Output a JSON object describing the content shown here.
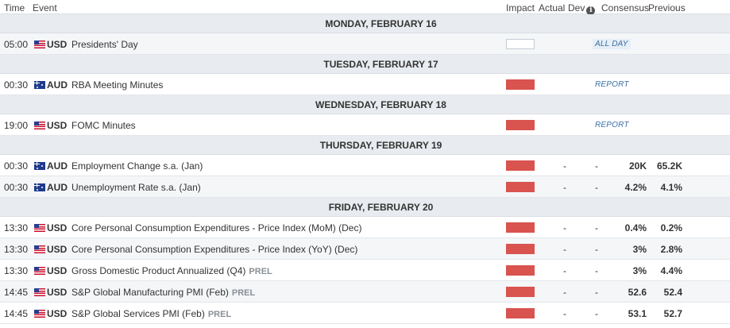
{
  "header": {
    "time": "Time",
    "event": "Event",
    "impact": "Impact",
    "actual": "Actual",
    "dev": "Dev",
    "info_icon": "info-icon",
    "consensus": "Consensus",
    "previous": "Previous"
  },
  "colors": {
    "high_impact": "#d9534f",
    "day_header_bg": "#e8ebef",
    "tag_blue": "#3a6ea5"
  },
  "rows": [
    {
      "kind": "day",
      "label": "MONDAY, FEBRUARY 16"
    },
    {
      "kind": "event",
      "time": "05:00",
      "flag": "us-flag-icon",
      "currency": "USD",
      "event": "Presidents' Day",
      "prel": "",
      "impact": "none",
      "tag": "ALL DAY",
      "actual": "",
      "dev": "",
      "consensus": "",
      "previous": ""
    },
    {
      "kind": "day",
      "label": "TUESDAY, FEBRUARY 17"
    },
    {
      "kind": "event",
      "time": "00:30",
      "flag": "au-flag-icon",
      "currency": "AUD",
      "event": "RBA Meeting Minutes",
      "prel": "",
      "impact": "high",
      "tag": "REPORT",
      "actual": "",
      "dev": "",
      "consensus": "",
      "previous": ""
    },
    {
      "kind": "day",
      "label": "WEDNESDAY, FEBRUARY 18"
    },
    {
      "kind": "event",
      "time": "19:00",
      "flag": "us-flag-icon",
      "currency": "USD",
      "event": "FOMC Minutes",
      "prel": "",
      "impact": "high",
      "tag": "REPORT",
      "actual": "",
      "dev": "",
      "consensus": "",
      "previous": ""
    },
    {
      "kind": "day",
      "label": "THURSDAY, FEBRUARY 19"
    },
    {
      "kind": "event",
      "time": "00:30",
      "flag": "au-flag-icon",
      "currency": "AUD",
      "event": "Employment Change s.a. (Jan)",
      "prel": "",
      "impact": "high",
      "tag": "",
      "actual": "-",
      "dev": "-",
      "consensus": "20K",
      "previous": "65.2K"
    },
    {
      "kind": "event",
      "time": "00:30",
      "flag": "au-flag-icon",
      "currency": "AUD",
      "event": "Unemployment Rate s.a. (Jan)",
      "prel": "",
      "impact": "high",
      "tag": "",
      "actual": "-",
      "dev": "-",
      "consensus": "4.2%",
      "previous": "4.1%"
    },
    {
      "kind": "day",
      "label": "FRIDAY, FEBRUARY 20"
    },
    {
      "kind": "event",
      "time": "13:30",
      "flag": "us-flag-icon",
      "currency": "USD",
      "event": "Core Personal Consumption Expenditures - Price Index (MoM) (Dec)",
      "prel": "",
      "impact": "high",
      "tag": "",
      "actual": "-",
      "dev": "-",
      "consensus": "0.4%",
      "previous": "0.2%"
    },
    {
      "kind": "event",
      "time": "13:30",
      "flag": "us-flag-icon",
      "currency": "USD",
      "event": "Core Personal Consumption Expenditures - Price Index (YoY) (Dec)",
      "prel": "",
      "impact": "high",
      "tag": "",
      "actual": "-",
      "dev": "-",
      "consensus": "3%",
      "previous": "2.8%"
    },
    {
      "kind": "event",
      "time": "13:30",
      "flag": "us-flag-icon",
      "currency": "USD",
      "event": "Gross Domestic Product Annualized (Q4)",
      "prel": "PREL",
      "impact": "high",
      "tag": "",
      "actual": "-",
      "dev": "-",
      "consensus": "3%",
      "previous": "4.4%"
    },
    {
      "kind": "event",
      "time": "14:45",
      "flag": "us-flag-icon",
      "currency": "USD",
      "event": "S&P Global Manufacturing PMI (Feb)",
      "prel": "PREL",
      "impact": "high",
      "tag": "",
      "actual": "-",
      "dev": "-",
      "consensus": "52.6",
      "previous": "52.4"
    },
    {
      "kind": "event",
      "time": "14:45",
      "flag": "us-flag-icon",
      "currency": "USD",
      "event": "S&P Global Services PMI (Feb)",
      "prel": "PREL",
      "impact": "high",
      "tag": "",
      "actual": "-",
      "dev": "-",
      "consensus": "53.1",
      "previous": "52.7"
    }
  ]
}
